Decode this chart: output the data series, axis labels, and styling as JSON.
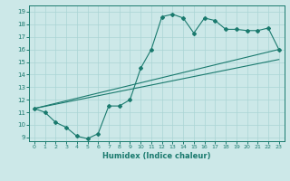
{
  "title": "",
  "xlabel": "Humidex (Indice chaleur)",
  "background_color": "#cce8e8",
  "line_color": "#1a7a6e",
  "grid_color": "#aad4d4",
  "xlim": [
    -0.5,
    23.5
  ],
  "ylim": [
    8.7,
    19.5
  ],
  "xticks": [
    0,
    1,
    2,
    3,
    4,
    5,
    6,
    7,
    8,
    9,
    10,
    11,
    12,
    13,
    14,
    15,
    16,
    17,
    18,
    19,
    20,
    21,
    22,
    23
  ],
  "yticks": [
    9,
    10,
    11,
    12,
    13,
    14,
    15,
    16,
    17,
    18,
    19
  ],
  "curve_x": [
    0,
    1,
    2,
    3,
    4,
    5,
    6,
    7,
    8,
    9,
    10,
    11,
    12,
    13,
    14,
    15,
    16,
    17,
    18,
    19,
    20,
    21,
    22,
    23
  ],
  "curve_y": [
    11.3,
    11.0,
    10.2,
    9.8,
    9.1,
    8.9,
    9.3,
    11.5,
    11.5,
    12.0,
    14.5,
    16.0,
    18.6,
    18.8,
    18.5,
    17.3,
    18.5,
    18.3,
    17.6,
    17.6,
    17.5,
    17.5,
    17.7,
    16.0
  ],
  "line1_x": [
    0,
    23
  ],
  "line1_y": [
    11.3,
    16.0
  ],
  "line2_x": [
    0,
    23
  ],
  "line2_y": [
    11.3,
    15.2
  ]
}
